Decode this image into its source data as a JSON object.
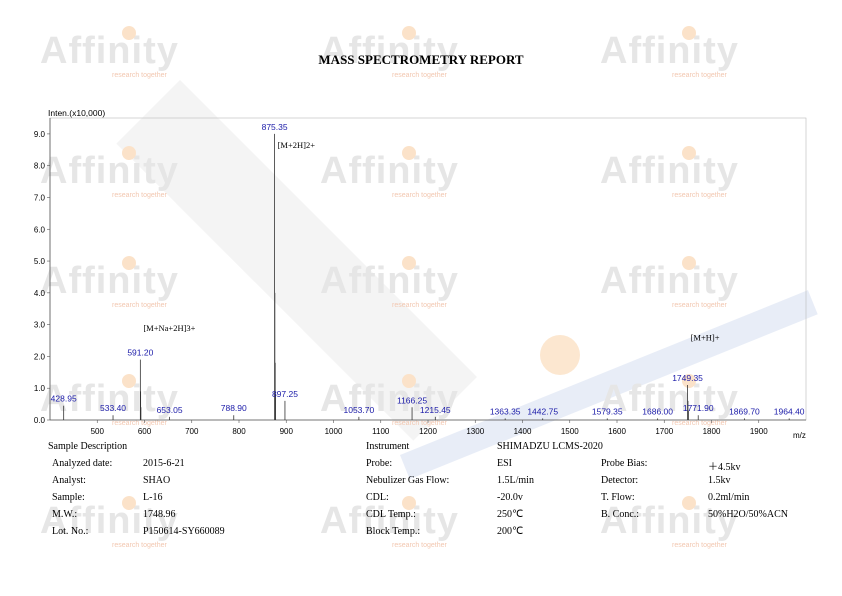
{
  "watermark": {
    "brand": "Affinity",
    "tagline": "research together",
    "colors": {
      "text": "#e6e6e6",
      "accent": "#f6b87c",
      "stripe": "#cdd6ee"
    }
  },
  "report": {
    "title": "MASS SPECTROMETRY REPORT"
  },
  "chart_data": {
    "type": "bar",
    "ylabel": "Inten.(x10,000)",
    "xlabel": "m/z",
    "xlim": [
      400,
      2000
    ],
    "ylim": [
      0,
      9.5
    ],
    "x_ticks": [
      500,
      600,
      700,
      800,
      900,
      1000,
      1100,
      1200,
      1300,
      1400,
      1500,
      1600,
      1700,
      1800,
      1900
    ],
    "y_ticks": [
      0.0,
      1.0,
      2.0,
      3.0,
      4.0,
      5.0,
      6.0,
      7.0,
      8.0,
      9.0
    ],
    "y_tick_labels": [
      "0.0",
      "1.0",
      "2.0",
      "3.0",
      "4.0",
      "5.0",
      "6.0",
      "7.0",
      "8.0",
      "9.0"
    ],
    "grid": false,
    "colors": {
      "peak": "#333333",
      "label": "#1a1aa8",
      "axis": "#555555"
    },
    "peaks": [
      {
        "x": 428.95,
        "y": 0.45,
        "label": "428.95"
      },
      {
        "x": 533.4,
        "y": 0.15,
        "label": "533.40"
      },
      {
        "x": 591.2,
        "y": 1.9,
        "label": "591.20"
      },
      {
        "x": 653.05,
        "y": 0.1,
        "label": "653.05"
      },
      {
        "x": 788.9,
        "y": 0.15,
        "label": "788.90"
      },
      {
        "x": 875.35,
        "y": 9.0,
        "label": "875.35"
      },
      {
        "x": 897.25,
        "y": 0.6,
        "label": "897.25"
      },
      {
        "x": 1053.7,
        "y": 0.1,
        "label": "1053.70"
      },
      {
        "x": 1166.25,
        "y": 0.4,
        "label": "1166.25"
      },
      {
        "x": 1215.45,
        "y": 0.1,
        "label": "1215.45"
      },
      {
        "x": 1363.35,
        "y": 0.05,
        "label": "1363.35"
      },
      {
        "x": 1442.75,
        "y": 0.05,
        "label": "1442.75"
      },
      {
        "x": 1579.35,
        "y": 0.05,
        "label": "1579.35"
      },
      {
        "x": 1686.0,
        "y": 0.05,
        "label": "1686.00"
      },
      {
        "x": 1749.35,
        "y": 1.1,
        "label": "1749.35"
      },
      {
        "x": 1771.9,
        "y": 0.15,
        "label": "1771.90"
      },
      {
        "x": 1869.7,
        "y": 0.05,
        "label": "1869.70"
      },
      {
        "x": 1964.4,
        "y": 0.05,
        "label": "1964.40"
      }
    ],
    "minor_peaks": [
      {
        "x": 876.0,
        "y": 4.0
      },
      {
        "x": 876.7,
        "y": 1.8
      },
      {
        "x": 877.4,
        "y": 0.8
      },
      {
        "x": 591.9,
        "y": 0.9
      },
      {
        "x": 592.5,
        "y": 0.4
      },
      {
        "x": 1750.3,
        "y": 0.6
      },
      {
        "x": 1751.3,
        "y": 0.3
      }
    ],
    "annotations": [
      {
        "text": "[M+2H]2+",
        "x": 875.35,
        "y": 8.55
      },
      {
        "text": "[M+Na+2H]3+",
        "x": 591.2,
        "y": 2.8
      },
      {
        "text": "[M+H]+",
        "x": 1749.35,
        "y": 2.5
      }
    ]
  },
  "sample": {
    "heading": "Sample Description",
    "rows": [
      {
        "label": "Analyzed date:",
        "value": "2015-6-21"
      },
      {
        "label": "Analyst:",
        "value": "SHAO"
      },
      {
        "label": "Sample:",
        "value": "L-16"
      },
      {
        "label": "M.W.:",
        "value": "1748.96"
      },
      {
        "label": "Lot. No.:",
        "value": "P150614-SY660089"
      }
    ]
  },
  "instrument": {
    "heading": "Instrument",
    "model": "SHIMADZU LCMS-2020",
    "rows": [
      {
        "label": "Probe:",
        "value": "ESI"
      },
      {
        "label": "Nebulizer Gas Flow:",
        "value": "1.5L/min"
      },
      {
        "label": "CDL:",
        "value": "-20.0v"
      },
      {
        "label": "CDL Temp.:",
        "value": "250℃"
      },
      {
        "label": "Block Temp.:",
        "value": "200℃"
      }
    ],
    "rows_right": [
      {
        "label": "Probe Bias:",
        "value": "＋4.5kv"
      },
      {
        "label": "Detector:",
        "value": "1.5kv"
      },
      {
        "label": "T. Flow:",
        "value": "0.2ml/min"
      },
      {
        "label": "B. Conc.:",
        "value": "50%H2O/50%ACN"
      }
    ]
  }
}
